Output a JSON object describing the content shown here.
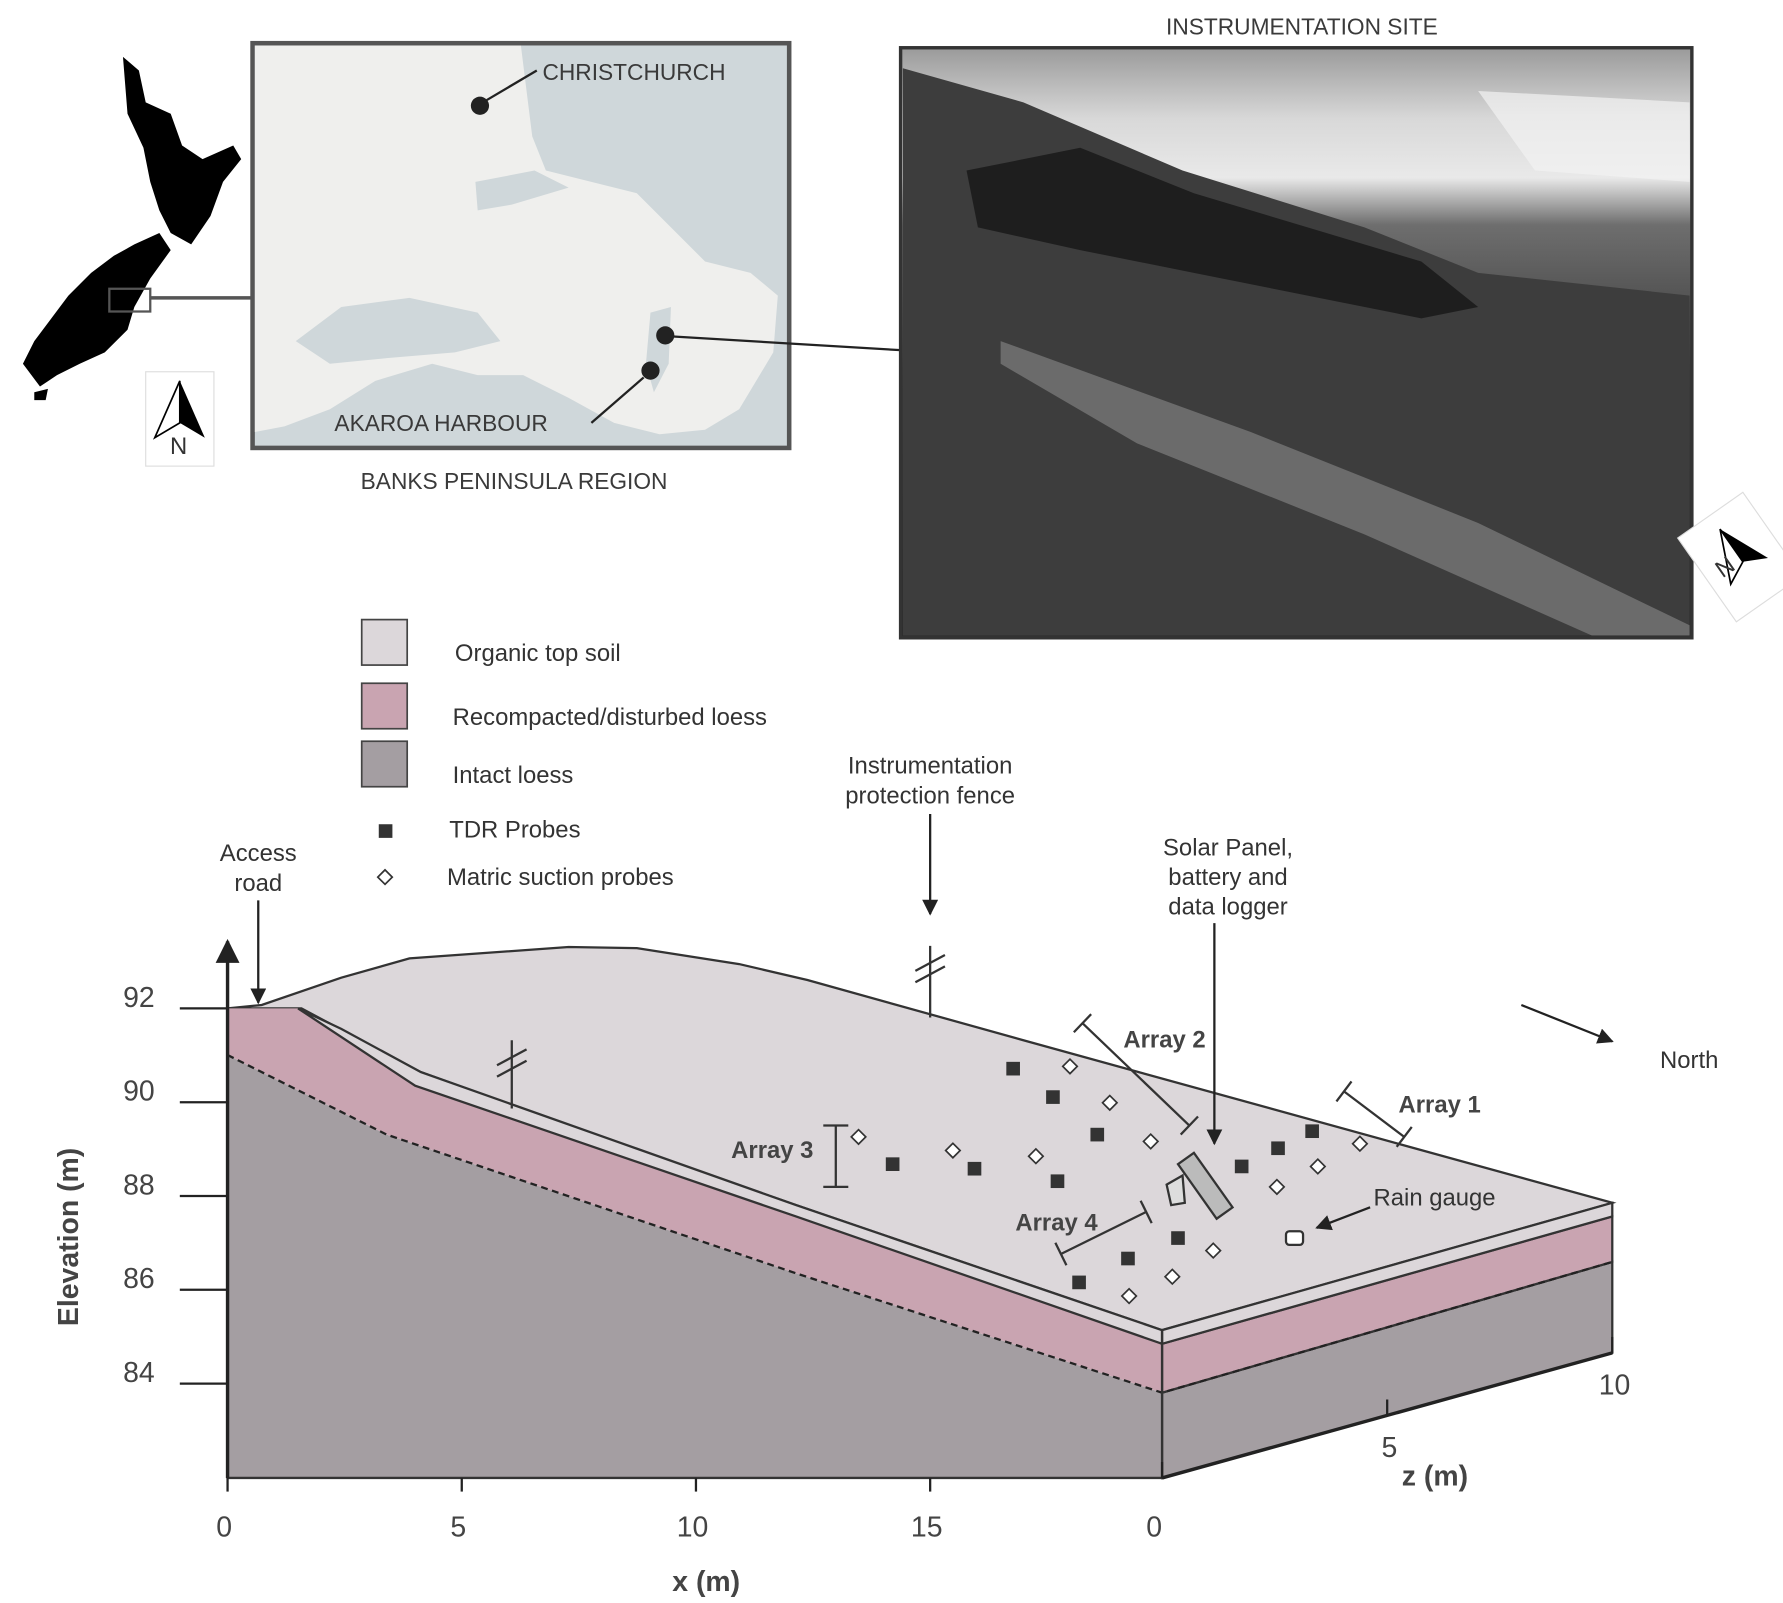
{
  "map_panel": {
    "city": "CHRISTCHURCH",
    "harbour": "AKAROA HARBOUR",
    "caption": "BANKS PENINSULA REGION",
    "north": "N"
  },
  "photo_panel": {
    "caption": "INSTRUMENTATION SITE",
    "north": "N"
  },
  "legend": {
    "layers": [
      {
        "label": "Organic top soil",
        "color": "#dcd7da"
      },
      {
        "label": "Recompacted/disturbed loess",
        "color": "#c9a4b1"
      },
      {
        "label": "Intact loess",
        "color": "#a49ea2"
      }
    ],
    "symbols": [
      {
        "label": "TDR Probes"
      },
      {
        "label": "Matric suction probes"
      }
    ]
  },
  "section": {
    "annotations": {
      "access_road": [
        "Access",
        "road"
      ],
      "fence": [
        "Instrumentation",
        "protection fence"
      ],
      "logger": [
        "Solar Panel,",
        "battery and",
        "data logger"
      ],
      "rain_gauge": "Rain gauge",
      "north": "North"
    },
    "arrays": [
      "Array 1",
      "Array 2",
      "Array 3",
      "Array 4"
    ],
    "y_axis": {
      "label": "Elevation (m)",
      "ticks": [
        84,
        86,
        88,
        90,
        92
      ]
    },
    "x_axis": {
      "label": "x (m)",
      "ticks": [
        0,
        5,
        10,
        15
      ]
    },
    "z_axis": {
      "label": "z (m)",
      "ticks": [
        0,
        5,
        10
      ]
    }
  }
}
